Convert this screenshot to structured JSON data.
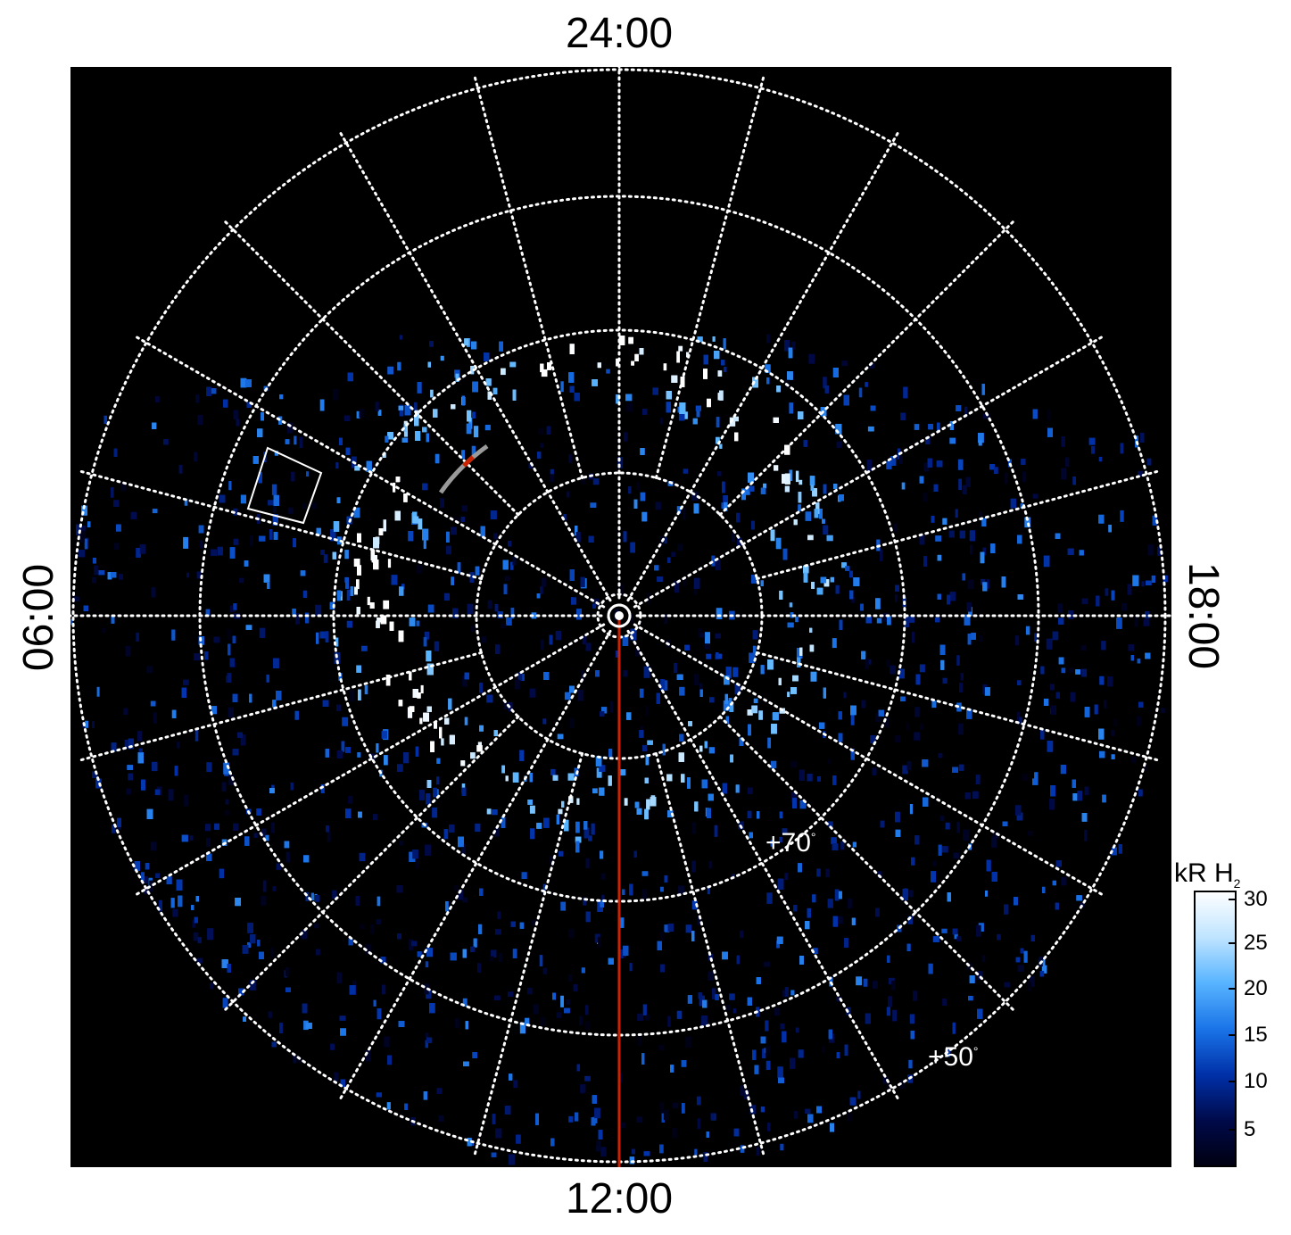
{
  "local_time_labels": {
    "top": "24:00",
    "bottom": "12:00",
    "left": "06:00",
    "right": "18:00"
  },
  "latitude_labels": {
    "lat70": "+70",
    "lat50": "+50",
    "degree_symbol": "°"
  },
  "colorbar": {
    "title_main": "kR H",
    "title_sub": "2",
    "ticks": [
      "30",
      "25",
      "20",
      "15",
      "10",
      "5"
    ],
    "min": 1,
    "max": 30,
    "colors": [
      "#000010",
      "#000a4a",
      "#0030a8",
      "#1a74e8",
      "#58b4ff",
      "#bfe4ff",
      "#ffffff"
    ]
  },
  "overlay_colors": {
    "grid": "#ffffff",
    "meridian_line": "#cc2200",
    "arc_gray": "#9a9a9a",
    "arc_red": "#cc2200",
    "box": "#ffffff",
    "background": "#000000"
  }
}
